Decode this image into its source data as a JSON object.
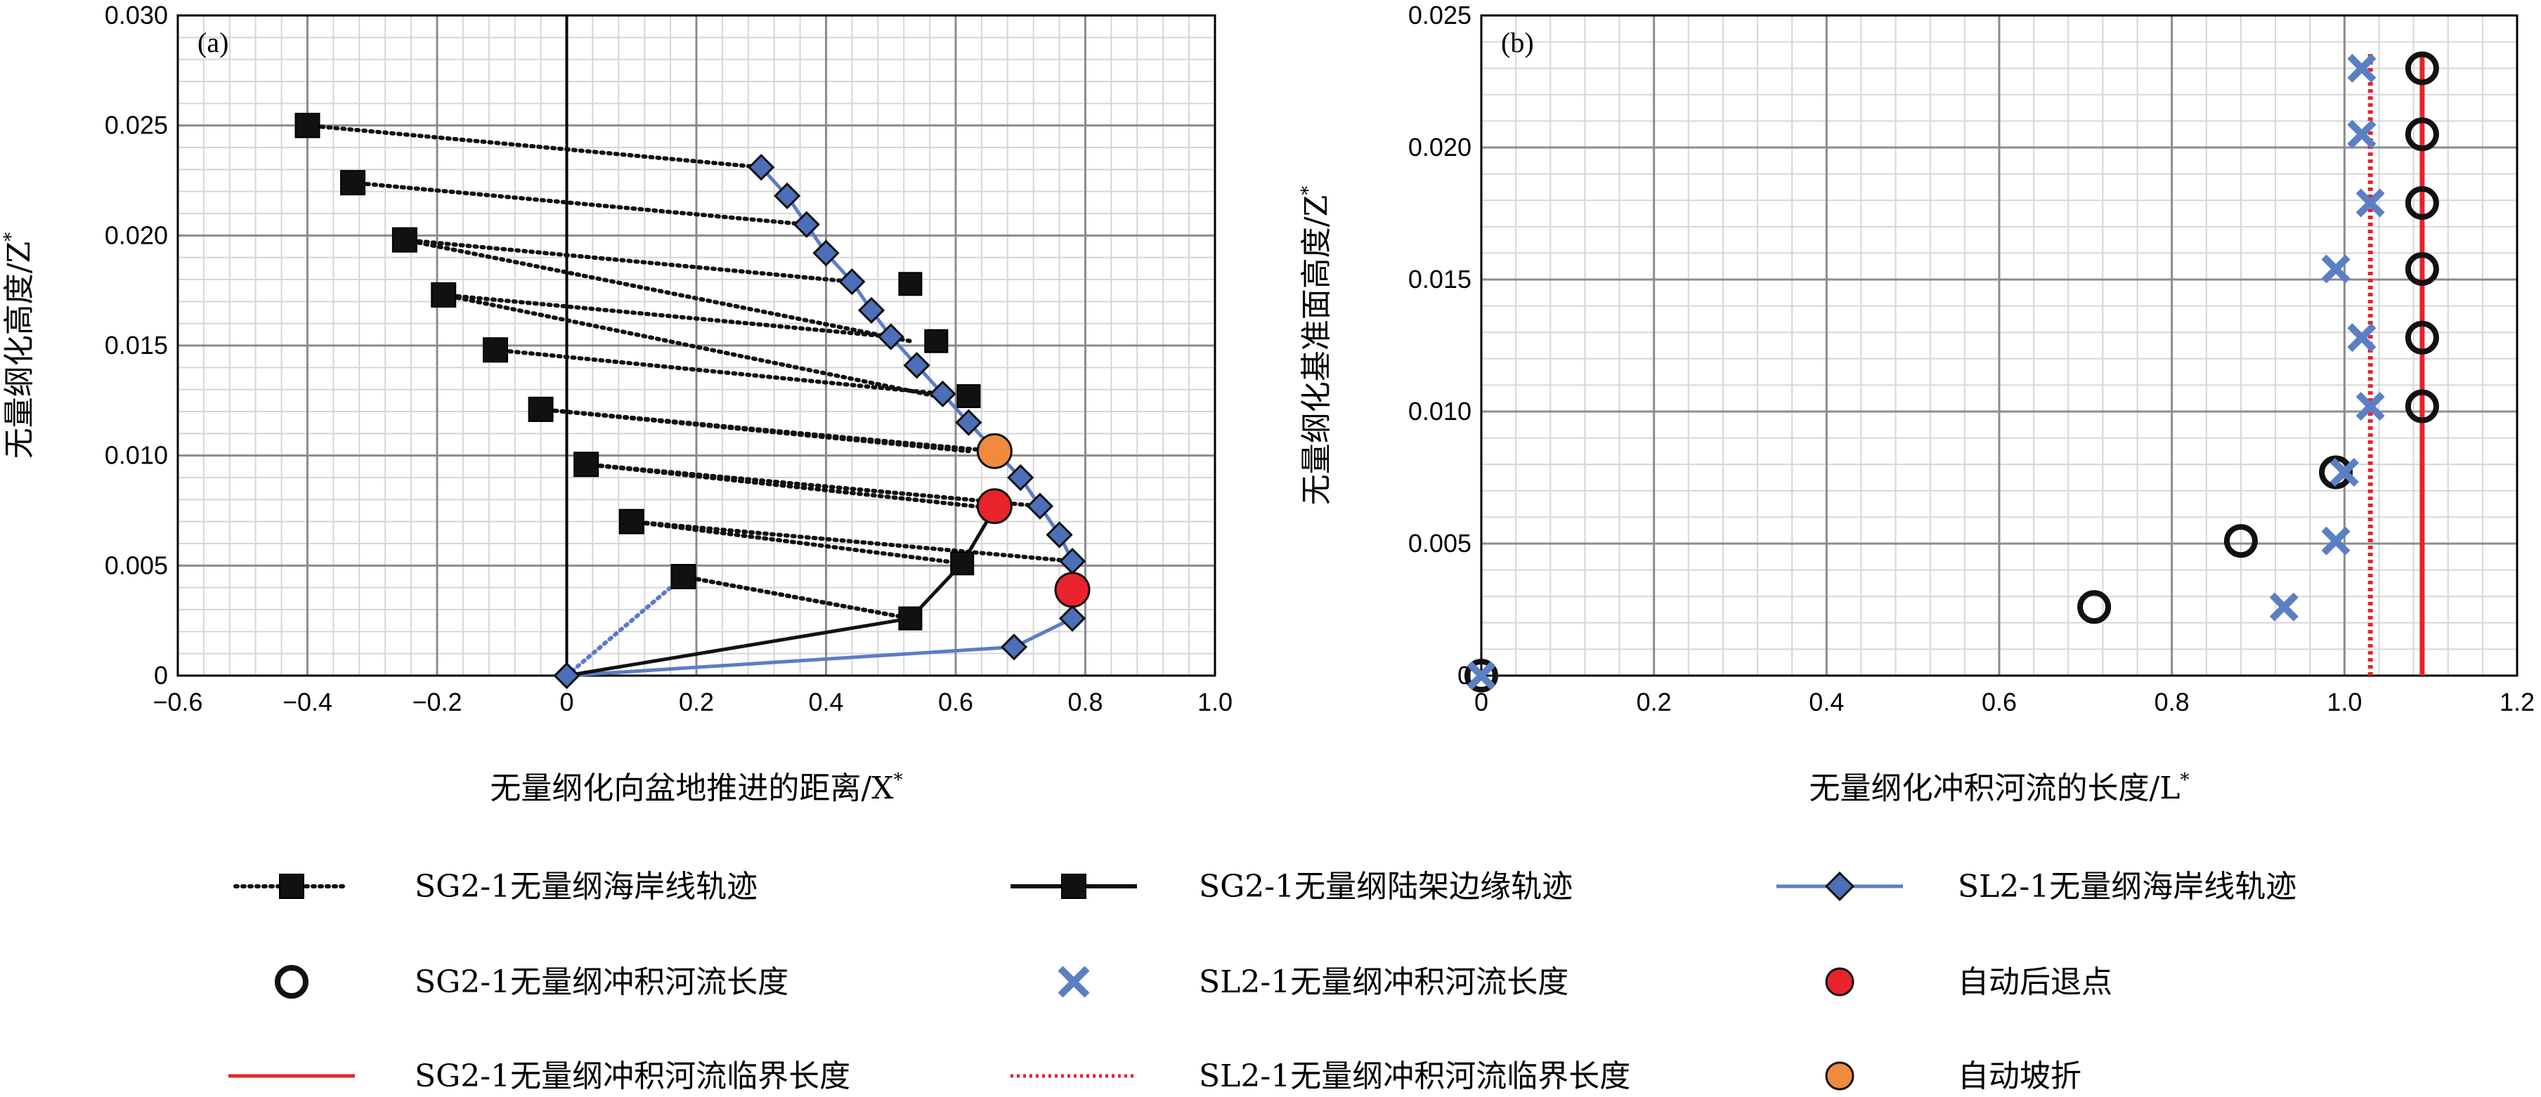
{
  "colors": {
    "black": "#111111",
    "blue_line": "#5b7dc6",
    "blue_marker": "#4b6fb8",
    "blue_cross": "#5b7fc4",
    "red": "#e8232b",
    "orange": "#f08a3c",
    "red_line": "#e8232b",
    "grid_major": "#8c8c8c",
    "grid_minor": "#d6d6d6"
  },
  "legend": {
    "items": [
      {
        "id": "sg-shoreline",
        "label": "SG2-1无量纲海岸线轨迹",
        "symbol": "black-square-dotted"
      },
      {
        "id": "sg-shelf",
        "label": "SG2-1无量纲陆架边缘轨迹",
        "symbol": "black-square-solid"
      },
      {
        "id": "sl-shoreline",
        "label": "SL2-1无量纲海岸线轨迹",
        "symbol": "blue-diamond-solid"
      },
      {
        "id": "sg-river",
        "label": "SG2-1无量纲冲积河流长度",
        "symbol": "open-circle"
      },
      {
        "id": "sl-river",
        "label": "SL2-1无量纲冲积河流长度",
        "symbol": "blue-cross"
      },
      {
        "id": "autoretreat",
        "label": "自动后退点",
        "symbol": "red-dot"
      },
      {
        "id": "sg-critical",
        "label": "SG2-1无量纲冲积河流临界长度",
        "symbol": "red-solid-line"
      },
      {
        "id": "sl-critical",
        "label": "SL2-1无量纲冲积河流临界长度",
        "symbol": "red-dotted-line"
      },
      {
        "id": "autobreak",
        "label": "自动坡折",
        "symbol": "orange-dot"
      }
    ]
  },
  "chart_data": [
    {
      "panel_label": "(a)",
      "type": "scatter",
      "xlabel": "无量纲化向盆地推进的距离/X",
      "xlabel_sup": "*",
      "ylabel": "无量纲化高度/Z",
      "ylabel_sup": "*",
      "xlim": [
        -0.6,
        1.0
      ],
      "ylim": [
        0,
        0.03
      ],
      "xticks": [
        -0.6,
        -0.4,
        -0.2,
        0,
        0.2,
        0.4,
        0.6,
        0.8,
        1.0
      ],
      "xtick_labels": [
        "−0.6",
        "−0.4",
        "−0.2",
        "0",
        "0.2",
        "0.4",
        "0.6",
        "0.8",
        "1.0"
      ],
      "yticks": [
        0,
        0.005,
        0.01,
        0.015,
        0.02,
        0.025,
        0.03
      ],
      "ytick_labels": [
        "0",
        "0.005",
        "0.010",
        "0.015",
        "0.020",
        "0.025",
        "0.030"
      ],
      "grid": true,
      "series": [
        {
          "name": "SG2-1无量纲海岸线轨迹",
          "style": "dotted-square",
          "x": [
            -0.4,
            -0.33,
            -0.25,
            -0.19,
            -0.11,
            -0.04,
            0.03,
            0.1,
            0.18
          ],
          "y": [
            0.025,
            0.0224,
            0.0198,
            0.0173,
            0.0148,
            0.0121,
            0.0096,
            0.007,
            0.0045
          ]
        },
        {
          "name": "SG2-1无量纲陆架边缘轨迹",
          "style": "solid-square",
          "x": [
            0,
            0.53,
            0.61,
            0.66,
            0.66,
            0.62,
            0.57,
            0.53
          ],
          "y": [
            0,
            0.0026,
            0.0051,
            0.0076,
            0.0102,
            0.0127,
            0.0152,
            0.0178
          ]
        },
        {
          "name": "SL2-1无量纲海岸线轨迹",
          "style": "solid-diamond",
          "x": [
            0,
            0.69,
            0.78,
            0.78,
            0.76,
            0.73,
            0.7,
            0.62,
            0.58,
            0.54,
            0.5,
            0.47,
            0.44,
            0.4,
            0.37,
            0.34,
            0.3
          ],
          "y": [
            0,
            0.0013,
            0.0026,
            0.0052,
            0.0064,
            0.0077,
            0.009,
            0.0115,
            0.0128,
            0.0141,
            0.0154,
            0.0166,
            0.0179,
            0.0192,
            0.0205,
            0.0218,
            0.0231
          ]
        },
        {
          "name": "自动后退点",
          "style": "red-dot",
          "x": [
            0.78,
            0.66
          ],
          "y": [
            0.0039,
            0.0077
          ]
        },
        {
          "name": "自动坡折",
          "style": "orange-dot",
          "x": [
            0.66
          ],
          "y": [
            0.0102
          ]
        }
      ],
      "tie_lines": [
        {
          "from": [
            -0.4,
            0.025
          ],
          "to": [
            0.3,
            0.0231
          ]
        },
        {
          "from": [
            -0.33,
            0.0224
          ],
          "to": [
            0.37,
            0.0205
          ]
        },
        {
          "from": [
            -0.25,
            0.0198
          ],
          "to": [
            0.44,
            0.0179
          ]
        },
        {
          "from": [
            -0.19,
            0.0173
          ],
          "to": [
            0.5,
            0.0154
          ]
        },
        {
          "from": [
            -0.11,
            0.0148
          ],
          "to": [
            0.58,
            0.0128
          ]
        },
        {
          "from": [
            -0.04,
            0.0121
          ],
          "to": [
            0.66,
            0.0102
          ]
        },
        {
          "from": [
            0.03,
            0.0096
          ],
          "to": [
            0.73,
            0.0077
          ]
        },
        {
          "from": [
            0.1,
            0.007
          ],
          "to": [
            0.78,
            0.0052
          ]
        },
        {
          "from": [
            0.18,
            0.0045
          ],
          "to": [
            0.53,
            0.0026
          ]
        },
        {
          "from": [
            -0.25,
            0.0198
          ],
          "to": [
            0.53,
            0.0152
          ]
        },
        {
          "from": [
            -0.19,
            0.0173
          ],
          "to": [
            0.57,
            0.0127
          ]
        },
        {
          "from": [
            -0.04,
            0.0121
          ],
          "to": [
            0.62,
            0.0102
          ]
        },
        {
          "from": [
            0.03,
            0.0096
          ],
          "to": [
            0.66,
            0.0076
          ]
        },
        {
          "from": [
            0.1,
            0.007
          ],
          "to": [
            0.61,
            0.0051
          ]
        },
        {
          "from": [
            0.18,
            0.0045
          ],
          "to": [
            0.53,
            0.0026
          ]
        }
      ],
      "blue_dotted_connector": {
        "from": [
          0,
          0
        ],
        "to": [
          0.18,
          0.0045
        ]
      }
    },
    {
      "panel_label": "(b)",
      "type": "scatter",
      "xlabel": "无量纲化冲积河流的长度/L",
      "xlabel_sup": "*",
      "ylabel": "无量纲化基准面高度/Z",
      "ylabel_sup": "*",
      "xlim": [
        0,
        1.2
      ],
      "ylim": [
        0,
        0.025
      ],
      "xticks": [
        0,
        0.2,
        0.4,
        0.6,
        0.8,
        1.0,
        1.2
      ],
      "xtick_labels": [
        "0",
        "0.2",
        "0.4",
        "0.6",
        "0.8",
        "1.0",
        "1.2"
      ],
      "yticks": [
        0,
        0.005,
        0.01,
        0.015,
        0.02,
        0.025
      ],
      "ytick_labels": [
        "0",
        "0.005",
        "0.010",
        "0.015",
        "0.020",
        "0.025"
      ],
      "grid": true,
      "series": [
        {
          "name": "SG2-1无量纲冲积河流长度",
          "style": "open-circle",
          "x": [
            0,
            0.71,
            0.88,
            0.99,
            1.09,
            1.09,
            1.09,
            1.09,
            1.09,
            1.09
          ],
          "y": [
            0,
            0.0026,
            0.0051,
            0.0077,
            0.0102,
            0.0128,
            0.0154,
            0.0179,
            0.0205,
            0.023
          ]
        },
        {
          "name": "SL2-1无量纲冲积河流长度",
          "style": "blue-cross",
          "x": [
            0,
            0.93,
            0.99,
            1.0,
            1.03,
            1.02,
            0.99,
            1.03,
            1.02,
            1.02
          ],
          "y": [
            0,
            0.0026,
            0.0051,
            0.0077,
            0.0102,
            0.0128,
            0.0154,
            0.0179,
            0.0205,
            0.023
          ]
        },
        {
          "name": "SG2-1无量纲冲积河流临界长度",
          "style": "red-solid-vline",
          "x": [
            1.09,
            1.09
          ],
          "y": [
            0,
            0.0236
          ]
        },
        {
          "name": "SL2-1无量纲冲积河流临界长度",
          "style": "red-dotted-vline",
          "x": [
            1.03,
            1.03
          ],
          "y": [
            0,
            0.0236
          ]
        }
      ]
    }
  ]
}
